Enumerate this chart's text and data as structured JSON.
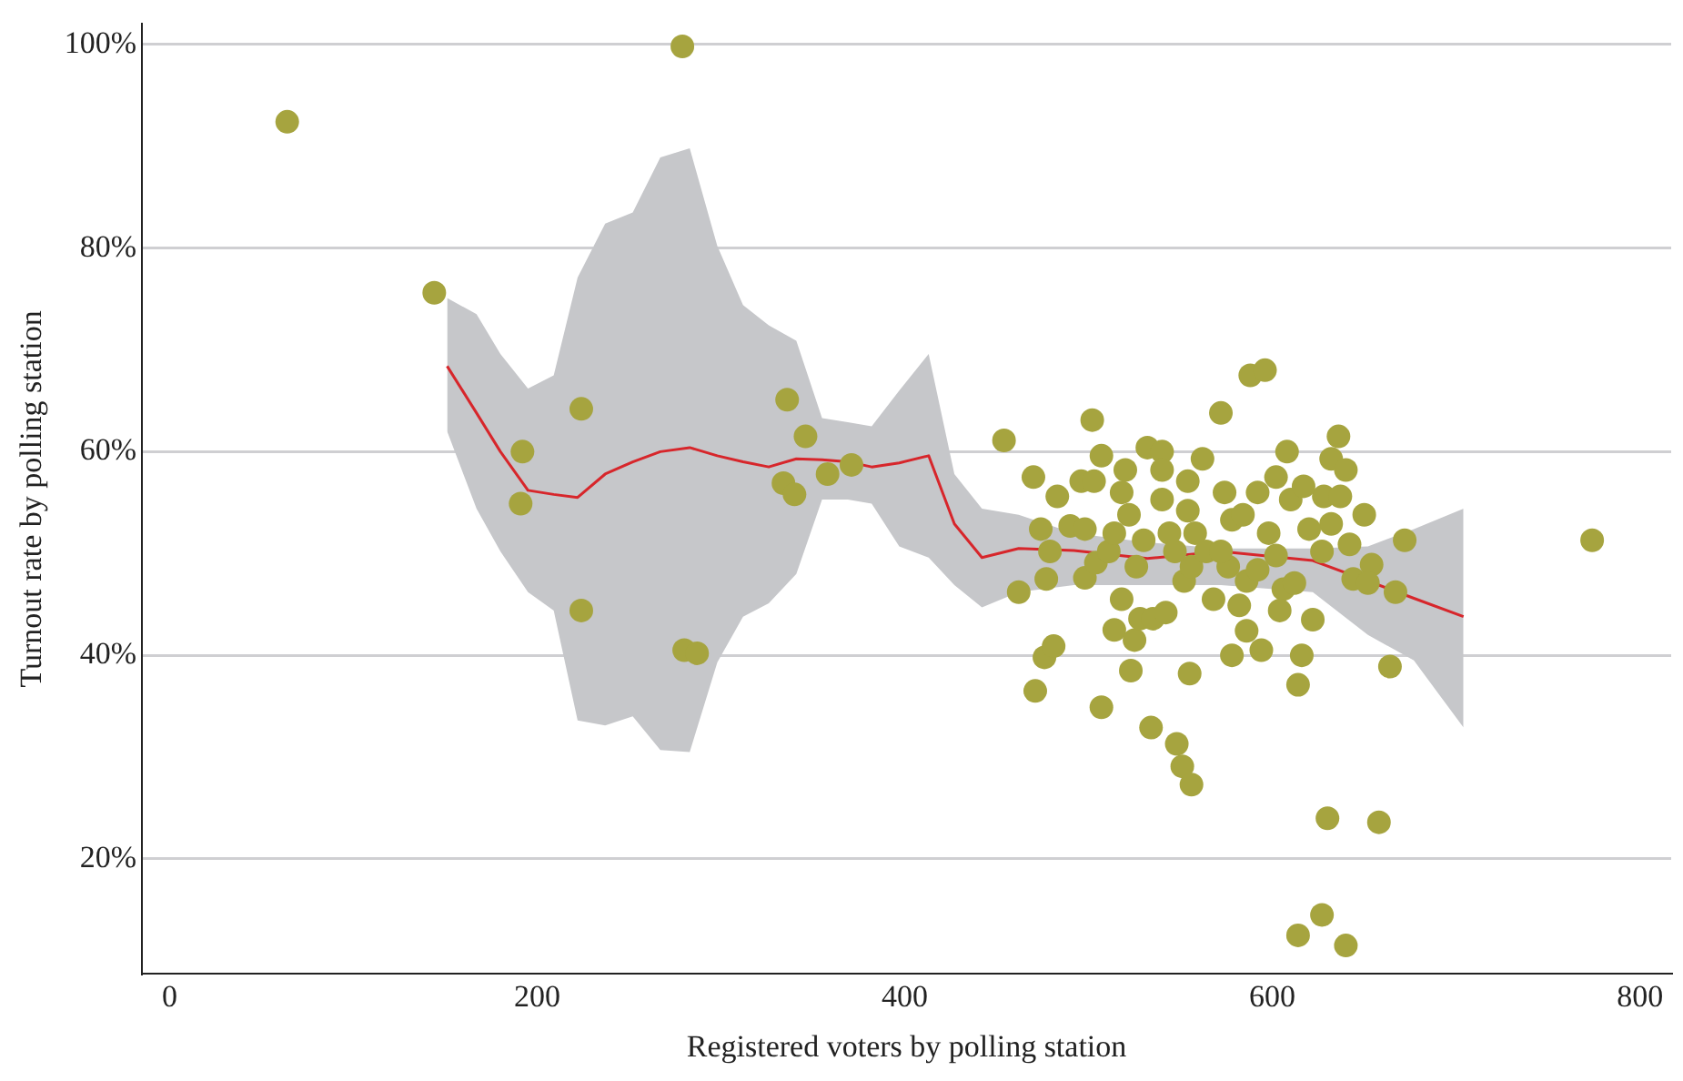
{
  "chart_data": {
    "type": "scatter",
    "xlabel": "Registered voters by polling station",
    "ylabel": "Turnout rate by polling station",
    "xlim": [
      -15,
      817
    ],
    "ylim": [
      8.7,
      102
    ],
    "xticks": [
      0,
      200,
      400,
      600,
      800
    ],
    "yticks": [
      {
        "value": 20,
        "label": "20%"
      },
      {
        "value": 40,
        "label": "40%"
      },
      {
        "value": 60,
        "label": "60%"
      },
      {
        "value": 80,
        "label": "80%"
      },
      {
        "value": 100,
        "label": "100%"
      }
    ],
    "grid": "y",
    "marker": "circle",
    "series": [
      {
        "color": "#a6a43f",
        "x": [
          64,
          144,
          192,
          191,
          224,
          224,
          279,
          280,
          287,
          336,
          334,
          340,
          346,
          358,
          371,
          774,
          454,
          462,
          470,
          474,
          477,
          476,
          481,
          471,
          479,
          483,
          490,
          496,
          502,
          503,
          498,
          498,
          504,
          507,
          507,
          511,
          514,
          514,
          518,
          518,
          520,
          522,
          523,
          525,
          526,
          528,
          530,
          532,
          534,
          535,
          540,
          540,
          540,
          542,
          544,
          548,
          551,
          556,
          552,
          554,
          554,
          556,
          555,
          558,
          562,
          564,
          568,
          572,
          574,
          578,
          576,
          578,
          584,
          586,
          586,
          588,
          596,
          592,
          594,
          598,
          602,
          606,
          608,
          610,
          614,
          616,
          614,
          622,
          627,
          630,
          632,
          636,
          640,
          640,
          642,
          644,
          650,
          654,
          658,
          664,
          667,
          672,
          628,
          632,
          620,
          592,
          572,
          547,
          582,
          612,
          637,
          627,
          652,
          602,
          617,
          604
        ],
        "values": [
          92.4,
          75.6,
          60,
          54.9,
          64.2,
          44.4,
          99.8,
          40.5,
          40.2,
          65.1,
          56.9,
          55.8,
          61.5,
          57.8,
          58.7,
          51.3,
          61.1,
          46.2,
          57.5,
          52.4,
          47.5,
          39.8,
          40.9,
          36.5,
          50.2,
          55.6,
          52.7,
          57.1,
          63.1,
          57.1,
          52.4,
          47.6,
          49.1,
          59.6,
          34.9,
          50.2,
          52,
          42.5,
          56,
          45.5,
          58.2,
          53.8,
          38.5,
          41.5,
          48.7,
          43.6,
          51.3,
          60.4,
          32.9,
          43.6,
          60,
          58.2,
          55.3,
          44.2,
          52,
          31.3,
          29.1,
          27.3,
          47.3,
          57.1,
          54.2,
          48.7,
          38.2,
          52,
          59.3,
          50.2,
          45.5,
          63.8,
          56,
          53.3,
          48.7,
          40,
          53.8,
          47.3,
          42.4,
          67.5,
          68,
          56,
          40.5,
          52,
          49.8,
          46.5,
          60,
          55.3,
          37.1,
          40,
          12.5,
          43.5,
          14.5,
          24,
          59.3,
          61.5,
          11.5,
          58.2,
          50.9,
          47.5,
          53.8,
          48.9,
          23.6,
          38.9,
          46.2,
          51.3,
          55.6,
          52.9,
          52.4,
          48.4,
          50.2,
          50.2,
          44.9,
          47.1,
          55.6,
          50.2,
          47.1,
          57.5,
          56.6,
          44.4
        ]
      },
      {
        "type": "line",
        "color": "#d7262b",
        "marker": "none",
        "x": [
          151,
          167,
          180,
          195,
          209,
          222,
          237,
          252,
          267,
          283,
          298,
          312,
          326,
          341,
          355,
          369,
          382,
          397,
          413,
          427,
          442,
          462,
          492,
          532,
          572,
          622,
          652,
          677,
          704
        ],
        "values": [
          68.4,
          63.8,
          60,
          56.2,
          55.8,
          55.5,
          57.8,
          59,
          60,
          60.4,
          59.6,
          59,
          58.5,
          59.3,
          59.2,
          59,
          58.5,
          58.9,
          59.6,
          52.9,
          49.6,
          50.5,
          50.3,
          49.5,
          50.2,
          49.3,
          47.3,
          45.6,
          43.8
        ],
        "upper": [
          75.1,
          73.5,
          69.6,
          66.2,
          67.5,
          77.1,
          82.4,
          83.5,
          88.9,
          89.8,
          80.2,
          74.4,
          72.4,
          70.9,
          63.3,
          62.9,
          62.5,
          66,
          69.6,
          57.8,
          54.4,
          53.8,
          52,
          51.1,
          50.5,
          50.5,
          50.7,
          52.4,
          54.4
        ],
        "lower": [
          62,
          54.4,
          50.2,
          46.2,
          44.4,
          33.6,
          33.1,
          34,
          30.7,
          30.5,
          39.3,
          43.8,
          45.1,
          48,
          55.3,
          55.3,
          54.9,
          50.7,
          49.6,
          46.9,
          44.7,
          46.2,
          46.9,
          46.9,
          46.9,
          46.2,
          42,
          39.5,
          32.9
        ]
      }
    ]
  }
}
